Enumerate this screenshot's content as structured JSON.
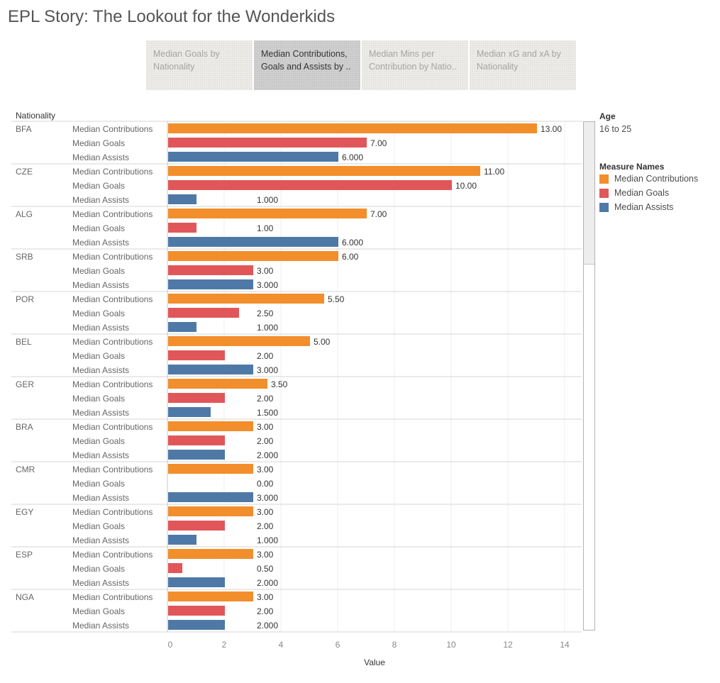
{
  "page": {
    "title": "EPL Story: The Lookout for the Wonderkids"
  },
  "tabs": [
    {
      "line1": "Median Goals by",
      "line2": "Nationality",
      "active": false
    },
    {
      "line1": "Median Contributions,",
      "line2": "Goals and Assists by ..",
      "active": true
    },
    {
      "line1": "Median Mins per",
      "line2": "Contribution by Natio..",
      "active": false
    },
    {
      "line1": "Median xG and xA by",
      "line2": "Nationality",
      "active": false
    }
  ],
  "filter": {
    "label": "Age",
    "value": "16 to 25"
  },
  "legend": {
    "title": "Measure Names",
    "items": [
      {
        "label": "Median Contributions",
        "color": "#f28e2b"
      },
      {
        "label": "Median Goals",
        "color": "#e15759"
      },
      {
        "label": "Median Assists",
        "color": "#4e79a7"
      }
    ]
  },
  "chart_data": {
    "type": "bar",
    "orientation": "horizontal",
    "row_header": "Nationality",
    "xlabel": "Value",
    "xlim": [
      0,
      14
    ],
    "x_ticks": [
      0,
      2,
      4,
      6,
      8,
      10,
      12,
      14
    ],
    "grid": true,
    "categories": [
      "BFA",
      "CZE",
      "ALG",
      "SRB",
      "POR",
      "BEL",
      "GER",
      "BRA",
      "CMR",
      "EGY",
      "ESP",
      "NGA"
    ],
    "series": [
      {
        "name": "Median Contributions",
        "color": "#f28e2b",
        "values": [
          13,
          11,
          7,
          6,
          5.5,
          5,
          3.5,
          3,
          3,
          3,
          3,
          3
        ],
        "labels": [
          "13.00",
          "11.00",
          "7.00",
          "6.00",
          "5.50",
          "5.00",
          "3.50",
          "3.00",
          "3.00",
          "3.00",
          "3.00",
          "3.00"
        ]
      },
      {
        "name": "Median Goals",
        "color": "#e15759",
        "values": [
          7,
          10,
          1,
          3,
          2.5,
          2,
          2,
          2,
          0,
          2,
          0.5,
          2
        ],
        "labels": [
          "7.00",
          "10.00",
          "1.00",
          "3.00",
          "2.50",
          "2.00",
          "2.00",
          "2.00",
          "0.00",
          "2.00",
          "0.50",
          "2.00"
        ]
      },
      {
        "name": "Median Assists",
        "color": "#4e79a7",
        "values": [
          6,
          1,
          6,
          3,
          1,
          3,
          1.5,
          2,
          3,
          1,
          2,
          2
        ],
        "labels": [
          "6.000",
          "1.000",
          "6.000",
          "3.000",
          "1.000",
          "3.000",
          "1.500",
          "2.000",
          "3.000",
          "1.000",
          "2.000",
          "2.000"
        ]
      }
    ]
  }
}
